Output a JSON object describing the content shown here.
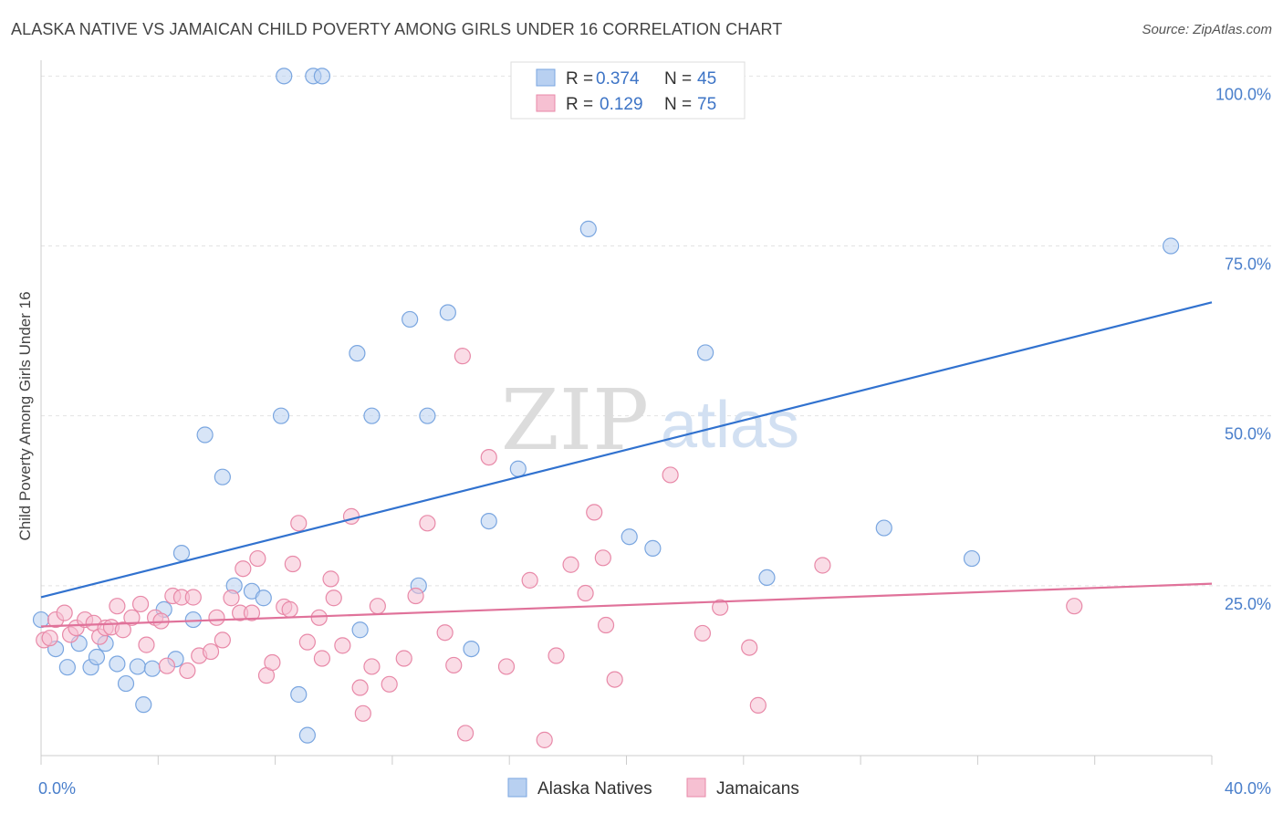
{
  "title": "ALASKA NATIVE VS JAMAICAN CHILD POVERTY AMONG GIRLS UNDER 16 CORRELATION CHART",
  "source": "Source: ZipAtlas.com",
  "watermark": {
    "zip": "ZIP",
    "atlas": "atlas"
  },
  "chart_data": {
    "type": "scatter",
    "xlabel": "",
    "ylabel": "Child Poverty Among Girls Under 16",
    "xlim": [
      0,
      40
    ],
    "ylim": [
      0,
      103
    ],
    "x_tick_labels": [
      "0.0%",
      "40.0%"
    ],
    "y_ticks": [
      25,
      50,
      75,
      100
    ],
    "y_tick_labels": [
      "25.0%",
      "50.0%",
      "75.0%",
      "100.0%"
    ],
    "grid": true,
    "legend_position": "bottom",
    "series": [
      {
        "name": "Alaska Natives",
        "color": "#7aa6e0",
        "fill": "#b8d0f1",
        "R": "0.374",
        "N": "45",
        "trend": [
          [
            0,
            23.3
          ],
          [
            40,
            66.7
          ]
        ],
        "points": [
          [
            0.0,
            20.0
          ],
          [
            0.5,
            15.7
          ],
          [
            0.9,
            13.0
          ],
          [
            1.3,
            16.5
          ],
          [
            1.7,
            13.0
          ],
          [
            1.9,
            14.5
          ],
          [
            2.2,
            16.5
          ],
          [
            2.6,
            13.5
          ],
          [
            2.9,
            10.6
          ],
          [
            3.3,
            13.1
          ],
          [
            3.5,
            7.5
          ],
          [
            3.8,
            12.8
          ],
          [
            4.2,
            21.5
          ],
          [
            4.6,
            14.2
          ],
          [
            4.8,
            29.8
          ],
          [
            5.2,
            20.0
          ],
          [
            5.6,
            47.2
          ],
          [
            6.2,
            41.0
          ],
          [
            6.6,
            25.0
          ],
          [
            7.2,
            24.2
          ],
          [
            7.6,
            23.2
          ],
          [
            8.2,
            50.0
          ],
          [
            8.3,
            100.0
          ],
          [
            8.8,
            9.0
          ],
          [
            9.1,
            3.0
          ],
          [
            9.3,
            100.0
          ],
          [
            9.6,
            100.0
          ],
          [
            10.8,
            59.2
          ],
          [
            10.9,
            18.5
          ],
          [
            11.3,
            50.0
          ],
          [
            12.6,
            64.2
          ],
          [
            13.2,
            50.0
          ],
          [
            12.9,
            25.0
          ],
          [
            13.9,
            65.2
          ],
          [
            14.7,
            15.7
          ],
          [
            15.3,
            34.5
          ],
          [
            16.3,
            42.2
          ],
          [
            18.7,
            77.5
          ],
          [
            20.1,
            32.2
          ],
          [
            20.9,
            30.5
          ],
          [
            22.7,
            59.3
          ],
          [
            24.8,
            26.2
          ],
          [
            28.8,
            33.5
          ],
          [
            31.8,
            29.0
          ],
          [
            38.6,
            75.0
          ]
        ]
      },
      {
        "name": "Jamaicans",
        "color": "#e889a8",
        "fill": "#f6c0d2",
        "R": "0.129",
        "N": "75",
        "trend": [
          [
            0,
            19.0
          ],
          [
            40,
            25.3
          ]
        ],
        "points": [
          [
            0.1,
            17.0
          ],
          [
            0.3,
            17.3
          ],
          [
            0.5,
            20.0
          ],
          [
            0.8,
            21.0
          ],
          [
            1.0,
            17.8
          ],
          [
            1.2,
            18.8
          ],
          [
            1.5,
            20.0
          ],
          [
            1.8,
            19.5
          ],
          [
            2.0,
            17.5
          ],
          [
            2.2,
            18.8
          ],
          [
            2.4,
            18.9
          ],
          [
            2.6,
            22.0
          ],
          [
            2.8,
            18.5
          ],
          [
            3.1,
            20.3
          ],
          [
            3.4,
            22.3
          ],
          [
            3.6,
            16.3
          ],
          [
            3.9,
            20.3
          ],
          [
            4.1,
            19.8
          ],
          [
            4.3,
            13.2
          ],
          [
            4.5,
            23.5
          ],
          [
            4.8,
            23.3
          ],
          [
            5.0,
            12.5
          ],
          [
            5.2,
            23.3
          ],
          [
            5.4,
            14.7
          ],
          [
            5.8,
            15.3
          ],
          [
            6.0,
            20.3
          ],
          [
            6.2,
            17.0
          ],
          [
            6.5,
            23.2
          ],
          [
            6.8,
            21.0
          ],
          [
            6.9,
            27.5
          ],
          [
            7.2,
            21.0
          ],
          [
            7.4,
            29.0
          ],
          [
            7.7,
            11.8
          ],
          [
            7.9,
            13.7
          ],
          [
            8.3,
            21.9
          ],
          [
            8.5,
            21.5
          ],
          [
            8.6,
            28.2
          ],
          [
            8.8,
            34.2
          ],
          [
            9.1,
            16.7
          ],
          [
            9.5,
            20.3
          ],
          [
            9.6,
            14.3
          ],
          [
            9.9,
            26.0
          ],
          [
            10.0,
            23.2
          ],
          [
            10.3,
            16.2
          ],
          [
            10.6,
            35.2
          ],
          [
            10.9,
            10.0
          ],
          [
            11.0,
            6.2
          ],
          [
            11.3,
            13.1
          ],
          [
            11.5,
            22.0
          ],
          [
            11.9,
            10.5
          ],
          [
            12.4,
            14.3
          ],
          [
            12.8,
            23.5
          ],
          [
            13.2,
            34.2
          ],
          [
            13.8,
            18.1
          ],
          [
            14.1,
            13.3
          ],
          [
            14.4,
            58.8
          ],
          [
            14.5,
            3.3
          ],
          [
            15.3,
            43.9
          ],
          [
            15.9,
            13.1
          ],
          [
            16.7,
            25.8
          ],
          [
            17.2,
            2.3
          ],
          [
            17.6,
            14.7
          ],
          [
            18.1,
            28.1
          ],
          [
            18.6,
            23.9
          ],
          [
            18.9,
            35.8
          ],
          [
            19.2,
            29.1
          ],
          [
            19.3,
            19.2
          ],
          [
            19.6,
            11.2
          ],
          [
            21.5,
            41.3
          ],
          [
            22.6,
            18.0
          ],
          [
            23.2,
            21.8
          ],
          [
            24.2,
            15.9
          ],
          [
            24.5,
            7.4
          ],
          [
            26.7,
            28.0
          ],
          [
            35.3,
            22.0
          ]
        ]
      }
    ]
  }
}
